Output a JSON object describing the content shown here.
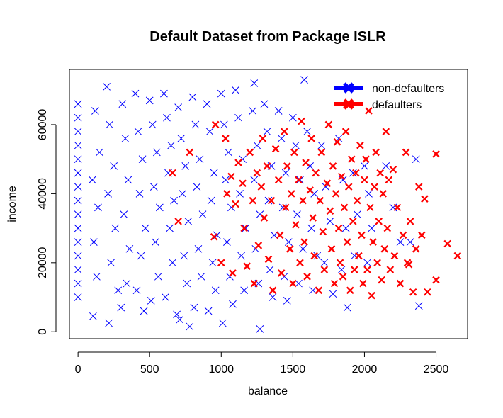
{
  "chart_data": {
    "type": "scatter",
    "title": "Default Dataset from Package ISLR",
    "xlabel": "balance",
    "ylabel": "income",
    "xlim": [
      -60,
      2720
    ],
    "ylim": [
      -2000,
      76000
    ],
    "xticks": [
      0,
      500,
      1000,
      1500,
      2000,
      2500
    ],
    "yticks": [
      0,
      20000,
      40000,
      60000
    ],
    "xtick_labels": [
      "0",
      "500",
      "1000",
      "1500",
      "2000",
      "2500"
    ],
    "ytick_labels": [
      "0",
      "20000",
      "40000",
      "60000"
    ],
    "grid": false,
    "legend_position": "top-right",
    "marker": "x",
    "series": [
      {
        "name": "non-defaulters",
        "color": "#0000ff",
        "points": [
          [
            0,
            66000
          ],
          [
            0,
            62000
          ],
          [
            0,
            58000
          ],
          [
            0,
            54000
          ],
          [
            0,
            50000
          ],
          [
            0,
            46000
          ],
          [
            0,
            42000
          ],
          [
            0,
            38000
          ],
          [
            0,
            34000
          ],
          [
            0,
            30000
          ],
          [
            0,
            26000
          ],
          [
            0,
            22000
          ],
          [
            0,
            18000
          ],
          [
            0,
            14000
          ],
          [
            0,
            10000
          ],
          [
            120,
            64000
          ],
          [
            150,
            52000
          ],
          [
            100,
            44000
          ],
          [
            140,
            36000
          ],
          [
            110,
            26000
          ],
          [
            130,
            16000
          ],
          [
            105,
            4500
          ],
          [
            200,
            71000
          ],
          [
            220,
            60000
          ],
          [
            250,
            48000
          ],
          [
            210,
            40000
          ],
          [
            260,
            30000
          ],
          [
            230,
            20000
          ],
          [
            215,
            2500
          ],
          [
            280,
            12000
          ],
          [
            310,
            66000
          ],
          [
            330,
            56000
          ],
          [
            350,
            44000
          ],
          [
            320,
            34000
          ],
          [
            360,
            24000
          ],
          [
            340,
            14000
          ],
          [
            300,
            7000
          ],
          [
            400,
            69000
          ],
          [
            420,
            58000
          ],
          [
            450,
            50000
          ],
          [
            430,
            40000
          ],
          [
            470,
            30000
          ],
          [
            440,
            22000
          ],
          [
            410,
            12000
          ],
          [
            460,
            6000
          ],
          [
            500,
            67000
          ],
          [
            520,
            60000
          ],
          [
            550,
            52000
          ],
          [
            530,
            42000
          ],
          [
            570,
            36000
          ],
          [
            540,
            26000
          ],
          [
            560,
            16000
          ],
          [
            510,
            9000
          ],
          [
            600,
            69000
          ],
          [
            620,
            62000
          ],
          [
            650,
            54000
          ],
          [
            630,
            46000
          ],
          [
            670,
            38000
          ],
          [
            640,
            30000
          ],
          [
            660,
            20000
          ],
          [
            610,
            10000
          ],
          [
            690,
            5000
          ],
          [
            700,
            65000
          ],
          [
            720,
            56000
          ],
          [
            750,
            48000
          ],
          [
            730,
            40000
          ],
          [
            770,
            32000
          ],
          [
            740,
            22000
          ],
          [
            760,
            14000
          ],
          [
            710,
            3500
          ],
          [
            780,
            1500
          ],
          [
            800,
            68000
          ],
          [
            820,
            60000
          ],
          [
            850,
            50000
          ],
          [
            830,
            42000
          ],
          [
            870,
            34000
          ],
          [
            840,
            24000
          ],
          [
            860,
            16000
          ],
          [
            810,
            7000
          ],
          [
            900,
            66000
          ],
          [
            920,
            58000
          ],
          [
            950,
            46000
          ],
          [
            930,
            38000
          ],
          [
            970,
            28000
          ],
          [
            940,
            20000
          ],
          [
            960,
            12000
          ],
          [
            910,
            6000
          ],
          [
            1000,
            69000
          ],
          [
            1020,
            60000
          ],
          [
            1050,
            52000
          ],
          [
            1030,
            44000
          ],
          [
            1070,
            36000
          ],
          [
            1040,
            26000
          ],
          [
            1060,
            16000
          ],
          [
            1010,
            2500
          ],
          [
            1080,
            8000
          ],
          [
            1100,
            70000
          ],
          [
            1120,
            62000
          ],
          [
            1150,
            50000
          ],
          [
            1130,
            40000
          ],
          [
            1170,
            30000
          ],
          [
            1140,
            22000
          ],
          [
            1160,
            12000
          ],
          [
            1230,
            72000
          ],
          [
            1220,
            64000
          ],
          [
            1250,
            54000
          ],
          [
            1230,
            44000
          ],
          [
            1270,
            34000
          ],
          [
            1240,
            24000
          ],
          [
            1260,
            14000
          ],
          [
            1270,
            800
          ],
          [
            1300,
            66000
          ],
          [
            1320,
            58000
          ],
          [
            1350,
            48000
          ],
          [
            1330,
            38000
          ],
          [
            1370,
            28000
          ],
          [
            1340,
            18000
          ],
          [
            1360,
            10000
          ],
          [
            1400,
            64000
          ],
          [
            1420,
            56000
          ],
          [
            1450,
            46000
          ],
          [
            1430,
            36000
          ],
          [
            1470,
            26000
          ],
          [
            1440,
            16000
          ],
          [
            1460,
            9000
          ],
          [
            1500,
            62000
          ],
          [
            1520,
            54000
          ],
          [
            1550,
            44000
          ],
          [
            1530,
            34000
          ],
          [
            1570,
            24000
          ],
          [
            1540,
            14000
          ],
          [
            1580,
            73000
          ],
          [
            1600,
            58000
          ],
          [
            1620,
            48000
          ],
          [
            1650,
            40000
          ],
          [
            1630,
            30000
          ],
          [
            1670,
            22000
          ],
          [
            1640,
            12000
          ],
          [
            1700,
            54000
          ],
          [
            1730,
            42000
          ],
          [
            1760,
            32000
          ],
          [
            1720,
            20000
          ],
          [
            1780,
            11000
          ],
          [
            1820,
            56000
          ],
          [
            1850,
            44000
          ],
          [
            1870,
            30000
          ],
          [
            1840,
            18000
          ],
          [
            1880,
            7000
          ],
          [
            1920,
            46000
          ],
          [
            1950,
            34000
          ],
          [
            1930,
            22000
          ],
          [
            2000,
            48000
          ],
          [
            2030,
            40000
          ],
          [
            2050,
            30000
          ],
          [
            2020,
            20000
          ],
          [
            2150,
            48000
          ],
          [
            2200,
            36000
          ],
          [
            2250,
            26000
          ],
          [
            2320,
            26000
          ],
          [
            2360,
            50000
          ],
          [
            2380,
            7500
          ]
        ]
      },
      {
        "name": "defaulters",
        "color": "#ff0000",
        "points": [
          [
            660,
            46000
          ],
          [
            700,
            32000
          ],
          [
            780,
            52000
          ],
          [
            950,
            27500
          ],
          [
            960,
            60000
          ],
          [
            1000,
            20000
          ],
          [
            1030,
            56000
          ],
          [
            1040,
            40000
          ],
          [
            1070,
            45000
          ],
          [
            1080,
            17000
          ],
          [
            1100,
            37000
          ],
          [
            1120,
            49000
          ],
          [
            1150,
            43000
          ],
          [
            1160,
            30000
          ],
          [
            1180,
            19000
          ],
          [
            1200,
            52000
          ],
          [
            1220,
            38000
          ],
          [
            1230,
            14000
          ],
          [
            1250,
            46000
          ],
          [
            1260,
            25000
          ],
          [
            1280,
            42000
          ],
          [
            1290,
            56000
          ],
          [
            1300,
            33000
          ],
          [
            1320,
            48000
          ],
          [
            1330,
            21000
          ],
          [
            1350,
            38000
          ],
          [
            1360,
            12000
          ],
          [
            1380,
            53000
          ],
          [
            1400,
            44000
          ],
          [
            1410,
            28000
          ],
          [
            1420,
            17000
          ],
          [
            1440,
            58000
          ],
          [
            1450,
            36000
          ],
          [
            1460,
            48000
          ],
          [
            1480,
            24000
          ],
          [
            1490,
            40000
          ],
          [
            1500,
            14000
          ],
          [
            1510,
            52000
          ],
          [
            1520,
            31000
          ],
          [
            1540,
            44000
          ],
          [
            1550,
            20000
          ],
          [
            1560,
            61000
          ],
          [
            1570,
            38000
          ],
          [
            1580,
            26000
          ],
          [
            1590,
            49000
          ],
          [
            1600,
            16000
          ],
          [
            1620,
            41000
          ],
          [
            1630,
            56000
          ],
          [
            1640,
            33000
          ],
          [
            1650,
            22000
          ],
          [
            1660,
            46000
          ],
          [
            1680,
            12000
          ],
          [
            1690,
            38000
          ],
          [
            1700,
            52000
          ],
          [
            1710,
            29000
          ],
          [
            1720,
            18000
          ],
          [
            1740,
            43000
          ],
          [
            1750,
            60000
          ],
          [
            1760,
            35000
          ],
          [
            1770,
            24000
          ],
          [
            1780,
            48000
          ],
          [
            1790,
            14000
          ],
          [
            1800,
            40000
          ],
          [
            1810,
            55000
          ],
          [
            1820,
            30000
          ],
          [
            1830,
            20000
          ],
          [
            1840,
            45000
          ],
          [
            1850,
            16000
          ],
          [
            1860,
            36000
          ],
          [
            1870,
            58000
          ],
          [
            1880,
            26000
          ],
          [
            1890,
            42000
          ],
          [
            1900,
            12000
          ],
          [
            1910,
            50000
          ],
          [
            1920,
            32000
          ],
          [
            1930,
            18000
          ],
          [
            1940,
            46000
          ],
          [
            1950,
            38000
          ],
          [
            1960,
            22000
          ],
          [
            1970,
            54000
          ],
          [
            1980,
            28000
          ],
          [
            1990,
            14000
          ],
          [
            2000,
            44000
          ],
          [
            2010,
            50000
          ],
          [
            2020,
            18000
          ],
          [
            2030,
            64000
          ],
          [
            2040,
            36000
          ],
          [
            2050,
            10500
          ],
          [
            2060,
            26000
          ],
          [
            2070,
            42000
          ],
          [
            2080,
            52000
          ],
          [
            2090,
            20000
          ],
          [
            2100,
            32000
          ],
          [
            2110,
            46000
          ],
          [
            2120,
            15000
          ],
          [
            2130,
            40000
          ],
          [
            2140,
            24000
          ],
          [
            2150,
            58000
          ],
          [
            2160,
            30000
          ],
          [
            2170,
            44000
          ],
          [
            2180,
            18000
          ],
          [
            2200,
            47000
          ],
          [
            2210,
            22000
          ],
          [
            2230,
            36000
          ],
          [
            2250,
            14000
          ],
          [
            2270,
            28000
          ],
          [
            2290,
            52000
          ],
          [
            2300,
            20000
          ],
          [
            2320,
            32000
          ],
          [
            2340,
            11500
          ],
          [
            2360,
            24000
          ],
          [
            2380,
            42000
          ],
          [
            2400,
            28000
          ],
          [
            2420,
            38500
          ],
          [
            2440,
            11500
          ],
          [
            2500,
            51500
          ],
          [
            2500,
            15000
          ],
          [
            2580,
            25500
          ],
          [
            2650,
            22000
          ],
          [
            2310,
            19500
          ]
        ]
      }
    ]
  }
}
